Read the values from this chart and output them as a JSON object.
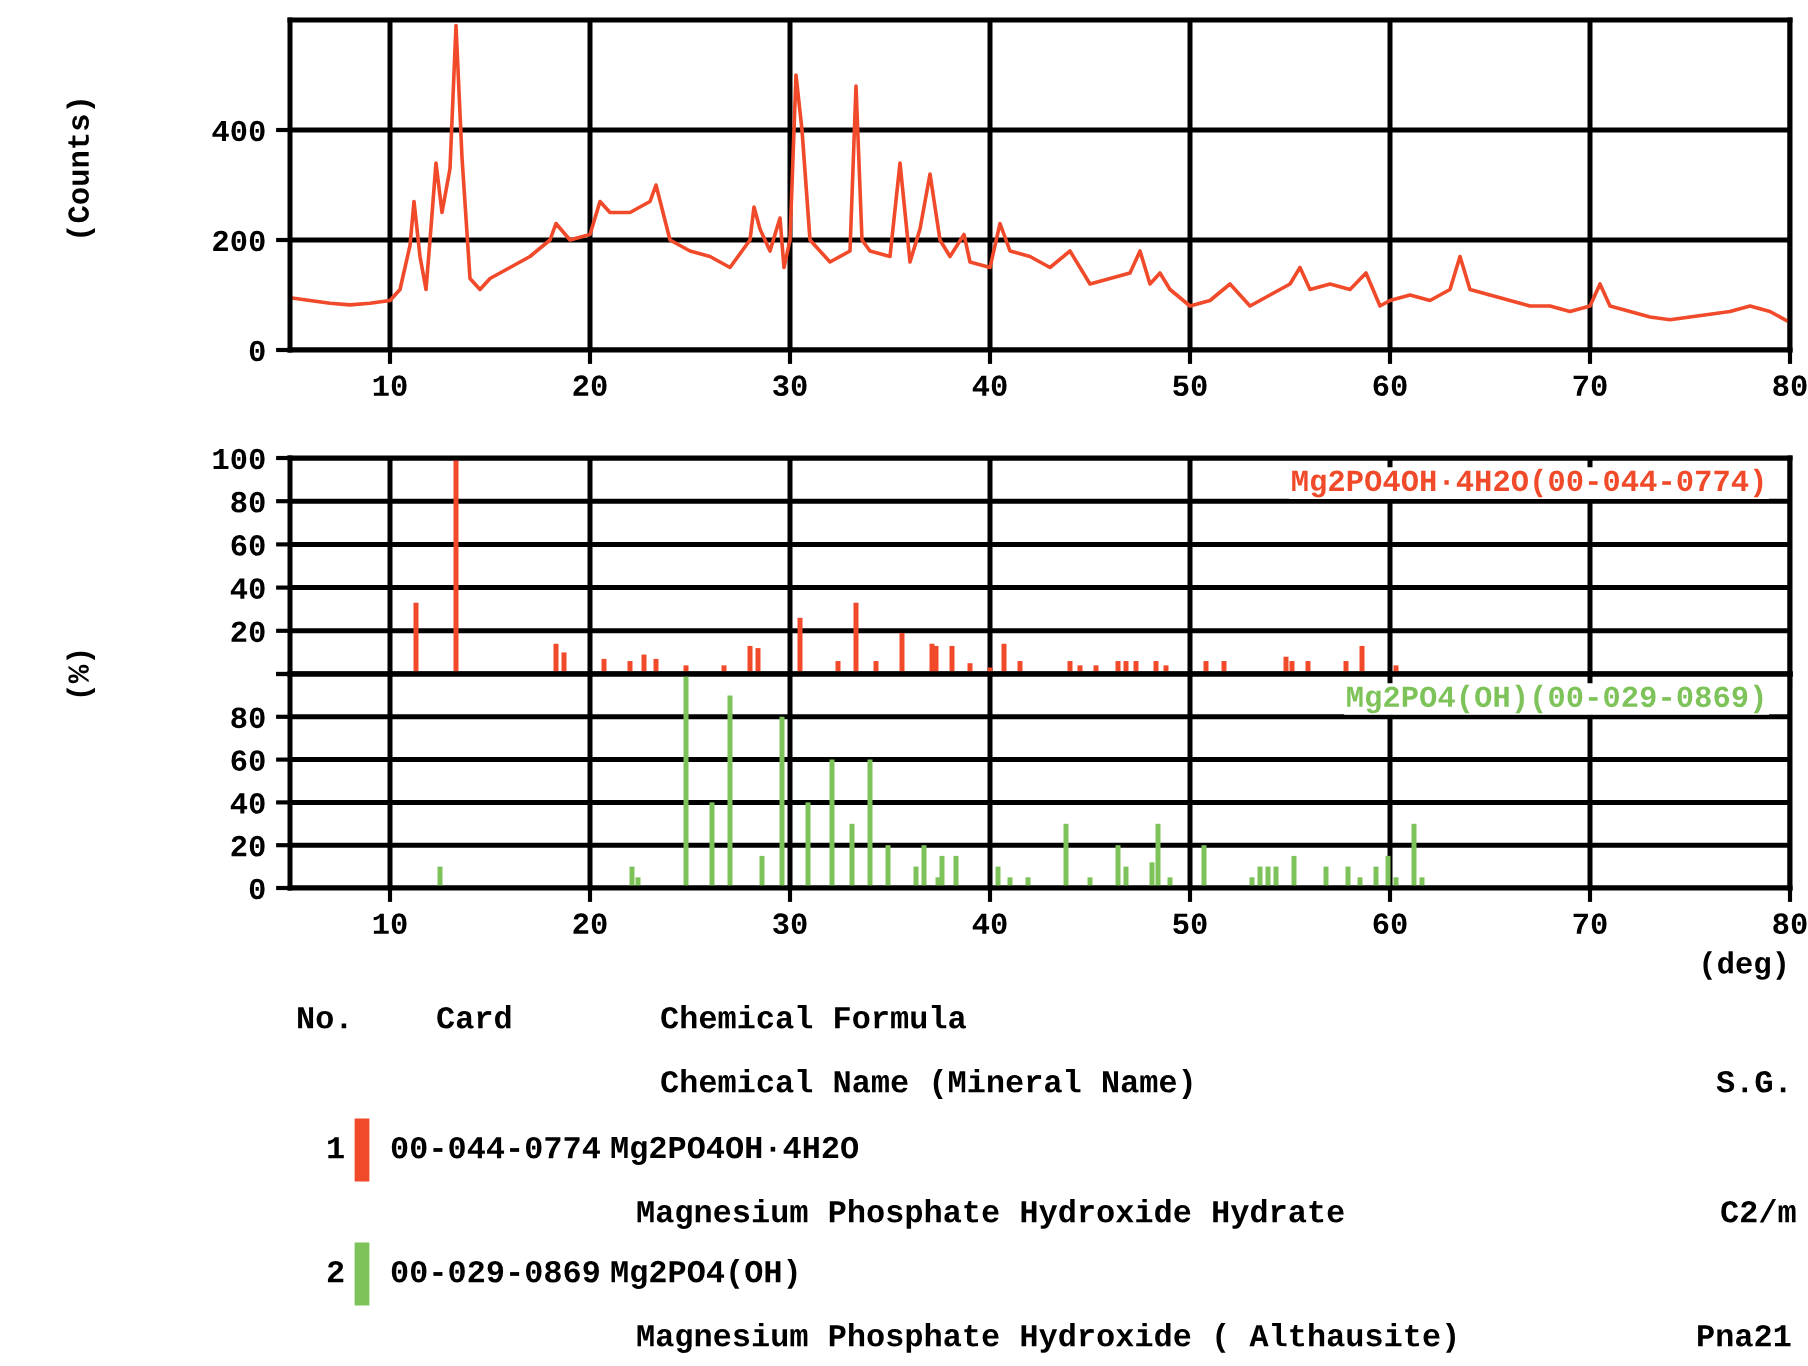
{
  "chart_data": [
    {
      "type": "line",
      "ylabel": "(Counts)",
      "xlim": [
        5,
        80
      ],
      "ylim": [
        0,
        600
      ],
      "xticks": [
        10,
        20,
        30,
        40,
        50,
        60,
        70,
        80
      ],
      "yticks": [
        0,
        200,
        400
      ],
      "grid": true,
      "tick_labels": "xy",
      "line_style": "solid",
      "series": [
        {
          "color": "#f04a2a",
          "x": [
            5,
            6,
            7,
            8,
            9,
            10,
            10.5,
            11,
            11.2,
            11.5,
            11.8,
            12,
            12.3,
            12.6,
            13,
            13.3,
            13.6,
            14,
            14.5,
            15,
            16,
            17,
            18,
            18.3,
            19,
            20,
            20.5,
            21,
            22,
            23,
            23.3,
            24,
            25,
            26,
            27,
            28,
            28.2,
            28.5,
            29,
            29.5,
            29.7,
            30,
            30.3,
            30.6,
            31,
            32,
            33,
            33.3,
            33.6,
            34,
            35,
            35.5,
            36,
            36.5,
            37,
            37.5,
            38,
            38.7,
            39,
            40,
            40.5,
            41,
            42,
            43,
            44,
            45,
            46,
            47,
            47.5,
            48,
            48.5,
            49,
            50,
            51,
            52,
            53,
            54,
            55,
            55.5,
            56,
            57,
            58,
            58.8,
            59.5,
            60,
            61,
            62,
            63,
            63.5,
            64,
            65,
            66,
            67,
            68,
            69,
            70,
            70.5,
            71,
            72,
            73,
            74,
            75,
            76,
            77,
            78,
            79,
            80
          ],
          "values": [
            95,
            90,
            85,
            82,
            85,
            90,
            110,
            190,
            270,
            170,
            110,
            200,
            340,
            250,
            330,
            590,
            350,
            130,
            110,
            130,
            150,
            170,
            200,
            230,
            200,
            210,
            270,
            250,
            250,
            270,
            300,
            200,
            180,
            170,
            150,
            200,
            260,
            220,
            180,
            240,
            150,
            200,
            500,
            400,
            200,
            160,
            180,
            480,
            200,
            180,
            170,
            340,
            160,
            220,
            320,
            200,
            170,
            210,
            160,
            150,
            230,
            180,
            170,
            150,
            180,
            120,
            130,
            140,
            180,
            120,
            140,
            110,
            80,
            90,
            120,
            80,
            100,
            120,
            150,
            110,
            120,
            110,
            140,
            80,
            90,
            100,
            90,
            110,
            170,
            110,
            100,
            90,
            80,
            80,
            70,
            80,
            120,
            80,
            70,
            60,
            55,
            60,
            65,
            70,
            80,
            70,
            50
          ]
        }
      ]
    },
    {
      "type": "bar",
      "xlim": [
        5,
        80
      ],
      "xticks": [
        10,
        20,
        30,
        40,
        50,
        60,
        70,
        80
      ],
      "ylim": [
        0,
        100
      ],
      "yticks": [
        {
          "value": 0,
          "label": null
        },
        20,
        40,
        60,
        80,
        100
      ],
      "grid": true,
      "tick_labels": "y",
      "series": [
        {
          "name": "Mg2PO4OH·4H2O(00-044-0774)",
          "color": "#f04a2a",
          "x": [
            11.3,
            13.3,
            18.3,
            18.7,
            20.7,
            22,
            22.7,
            23.3,
            24.8,
            26.7,
            28,
            28.4,
            30.5,
            32.4,
            33.3,
            34.3,
            35.6,
            37.1,
            37.3,
            38.1,
            39,
            40,
            40.7,
            41.5,
            44,
            44.5,
            45.3,
            46.4,
            46.8,
            47.3,
            48.3,
            48.8,
            50.8,
            51.7,
            54.8,
            55.1,
            55.9,
            57.8,
            58.6,
            60.3
          ],
          "values": [
            33,
            100,
            14,
            10,
            7,
            6,
            9,
            7,
            4,
            4,
            13,
            12,
            26,
            6,
            33,
            6,
            19,
            14,
            13,
            13,
            5,
            3,
            14,
            6,
            6,
            4,
            4,
            6,
            6,
            6,
            6,
            4,
            6,
            6,
            8,
            6,
            6,
            6,
            13,
            4
          ]
        }
      ]
    },
    {
      "type": "bar",
      "xlabel": "(deg)",
      "ylabel": "(%)",
      "xlim": [
        5,
        80
      ],
      "xticks": [
        10,
        20,
        30,
        40,
        50,
        60,
        70,
        80
      ],
      "ylim": [
        0,
        100
      ],
      "yticks": [
        0,
        20,
        40,
        60,
        80,
        {
          "value": 100,
          "label": null
        }
      ],
      "grid": true,
      "series": [
        {
          "name": "Mg2PO4(OH)(00-029-0869)",
          "color": "#7dc35a",
          "x": [
            12.5,
            22.1,
            22.4,
            24.8,
            26.1,
            27,
            28.6,
            29.6,
            30.9,
            32.1,
            33.1,
            34,
            34.9,
            36.3,
            36.7,
            37.4,
            37.6,
            38.3,
            40.4,
            41,
            41.9,
            43.8,
            45,
            46.4,
            46.8,
            48.1,
            48.4,
            49,
            50.7,
            53.1,
            53.5,
            53.9,
            54.3,
            55.2,
            56.8,
            57.9,
            58.5,
            59.3,
            59.9,
            60.3,
            61.2,
            61.6
          ],
          "values": [
            10,
            10,
            5,
            100,
            40,
            90,
            15,
            80,
            40,
            60,
            30,
            60,
            20,
            10,
            20,
            5,
            15,
            15,
            10,
            5,
            5,
            30,
            5,
            20,
            10,
            12,
            30,
            5,
            20,
            5,
            10,
            10,
            10,
            15,
            10,
            10,
            5,
            10,
            15,
            5,
            30,
            5
          ]
        }
      ]
    },
    {
      "type": "other",
      "annotations": [
        "No.",
        "Card",
        "Chemical Formula",
        "Chemical Name (Mineral Name)",
        "S.G.",
        "1",
        "00-044-0774",
        "Mg2PO4OH·4H2O",
        "Magnesium Phosphate Hydroxide Hydrate",
        "C2/m",
        "2",
        "00-029-0869",
        "Mg2PO4(OH)",
        "Magnesium Phosphate Hydroxide ( Althausite)",
        "Pna21"
      ]
    }
  ]
}
